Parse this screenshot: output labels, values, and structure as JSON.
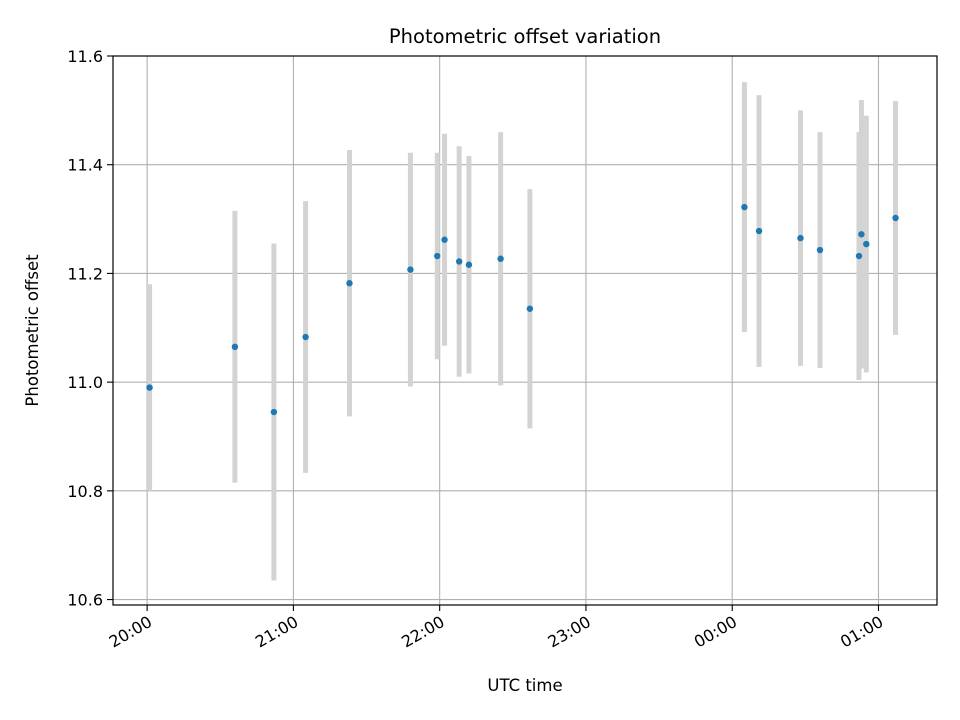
{
  "chart_data": {
    "type": "scatter",
    "title": "Photometric offset variation",
    "xlabel": "UTC time",
    "ylabel": "Photometric offset",
    "x_axis": "time",
    "x_ticks": [
      {
        "t": "2000-01-01T20:00",
        "label": "20:00"
      },
      {
        "t": "2000-01-01T21:00",
        "label": "21:00"
      },
      {
        "t": "2000-01-01T22:00",
        "label": "22:00"
      },
      {
        "t": "2000-01-01T23:00",
        "label": "23:00"
      },
      {
        "t": "2000-01-02T00:00",
        "label": "00:00"
      },
      {
        "t": "2000-01-02T01:00",
        "label": "01:00"
      }
    ],
    "xlim": [
      "2000-01-01T19:46",
      "2000-01-02T01:24"
    ],
    "ylim": [
      10.59,
      11.6
    ],
    "y_ticks": [
      10.6,
      10.8,
      11.0,
      11.2,
      11.4,
      11.6
    ],
    "y_tick_labels": [
      "10.6",
      "10.8",
      "11.0",
      "11.2",
      "11.4",
      "11.6"
    ],
    "grid": true,
    "point_color": "#1f77b4",
    "errorbar_color": "#d3d3d3",
    "points": [
      {
        "t": "2000-01-01T20:01",
        "y": 10.99,
        "err": 0.19
      },
      {
        "t": "2000-01-01T20:36",
        "y": 11.065,
        "err": 0.25
      },
      {
        "t": "2000-01-01T20:52",
        "y": 10.945,
        "err": 0.31
      },
      {
        "t": "2000-01-01T21:05",
        "y": 11.083,
        "err": 0.25
      },
      {
        "t": "2000-01-01T21:23",
        "y": 11.182,
        "err": 0.245
      },
      {
        "t": "2000-01-01T21:48",
        "y": 11.207,
        "err": 0.215
      },
      {
        "t": "2000-01-01T21:59",
        "y": 11.232,
        "err": 0.19
      },
      {
        "t": "2000-01-01T22:02",
        "y": 11.262,
        "err": 0.195
      },
      {
        "t": "2000-01-01T22:08",
        "y": 11.222,
        "err": 0.212
      },
      {
        "t": "2000-01-01T22:12",
        "y": 11.216,
        "err": 0.2
      },
      {
        "t": "2000-01-01T22:25",
        "y": 11.227,
        "err": 0.233
      },
      {
        "t": "2000-01-01T22:37",
        "y": 11.135,
        "err": 0.22
      },
      {
        "t": "2000-01-02T00:05",
        "y": 11.322,
        "err": 0.23
      },
      {
        "t": "2000-01-02T00:11",
        "y": 11.278,
        "err": 0.25
      },
      {
        "t": "2000-01-02T00:28",
        "y": 11.265,
        "err": 0.235
      },
      {
        "t": "2000-01-02T00:36",
        "y": 11.243,
        "err": 0.217
      },
      {
        "t": "2000-01-02T00:52",
        "y": 11.232,
        "err": 0.228
      },
      {
        "t": "2000-01-02T00:53",
        "y": 11.272,
        "err": 0.247
      },
      {
        "t": "2000-01-02T00:55",
        "y": 11.254,
        "err": 0.236
      },
      {
        "t": "2000-01-02T01:07",
        "y": 11.302,
        "err": 0.215
      }
    ]
  }
}
